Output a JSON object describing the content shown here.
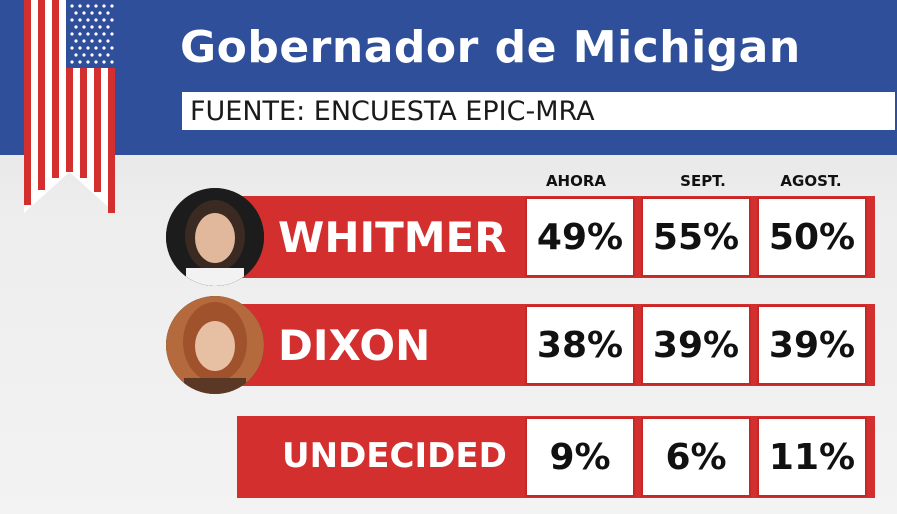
{
  "title": "Gobernador de Michigan",
  "subtitle": "FUENTE: ENCUESTA EPIC-MRA",
  "colors": {
    "header_blue": "#2f4f9a",
    "bar_red": "#d32f2f",
    "cell_border": "#c62828"
  },
  "chart_data": {
    "type": "table",
    "columns": [
      "AHORA",
      "SEPT.",
      "AGOST."
    ],
    "rows": [
      {
        "name": "WHITMER",
        "values": [
          "49%",
          "55%",
          "50%"
        ]
      },
      {
        "name": "DIXON",
        "values": [
          "38%",
          "39%",
          "39%"
        ]
      },
      {
        "name": "UNDECIDED",
        "values": [
          "9%",
          "6%",
          "11%"
        ]
      }
    ]
  }
}
